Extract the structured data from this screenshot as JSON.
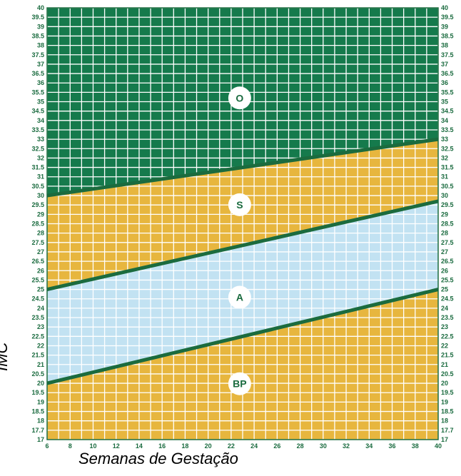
{
  "chart_data": {
    "type": "area",
    "xlabel": "Semanas de Gestação",
    "ylabel": "IMC",
    "xlim": [
      6,
      40
    ],
    "ylim": [
      17,
      40
    ],
    "x_ticks": [
      6,
      8,
      10,
      12,
      14,
      16,
      18,
      20,
      22,
      24,
      26,
      28,
      30,
      32,
      34,
      36,
      38,
      40
    ],
    "y_ticks": [
      "17",
      "17.7",
      "18",
      "18.5",
      "19",
      "19.5",
      "20",
      "20.5",
      "21",
      "21.5",
      "22",
      "22.5",
      "23",
      "23.5",
      "24",
      "24.5",
      "25",
      "25.5",
      "26",
      "26.5",
      "27",
      "27.5",
      "28",
      "28.5",
      "29",
      "29.5",
      "30",
      "30.5",
      "31",
      "31.5",
      "32",
      "32.5",
      "33",
      "33.5",
      "34",
      "34.5",
      "35",
      "35.5",
      "36",
      "36.5",
      "37",
      "37.5",
      "38",
      "38.5",
      "39",
      "39.5",
      "40"
    ],
    "grid": true,
    "boundary_lines": [
      {
        "x": [
          6,
          40
        ],
        "y": [
          20,
          25
        ]
      },
      {
        "x": [
          6,
          40
        ],
        "y": [
          25,
          29.7
        ]
      },
      {
        "x": [
          6,
          40
        ],
        "y": [
          30,
          33
        ]
      }
    ],
    "zones": [
      {
        "label": "BP",
        "color": "#e7b63e"
      },
      {
        "label": "A",
        "color": "#c2e2f2"
      },
      {
        "label": "S",
        "color": "#e7b63e"
      },
      {
        "label": "O",
        "color": "#157a4c"
      }
    ],
    "line_color": "#1b6b3e"
  }
}
